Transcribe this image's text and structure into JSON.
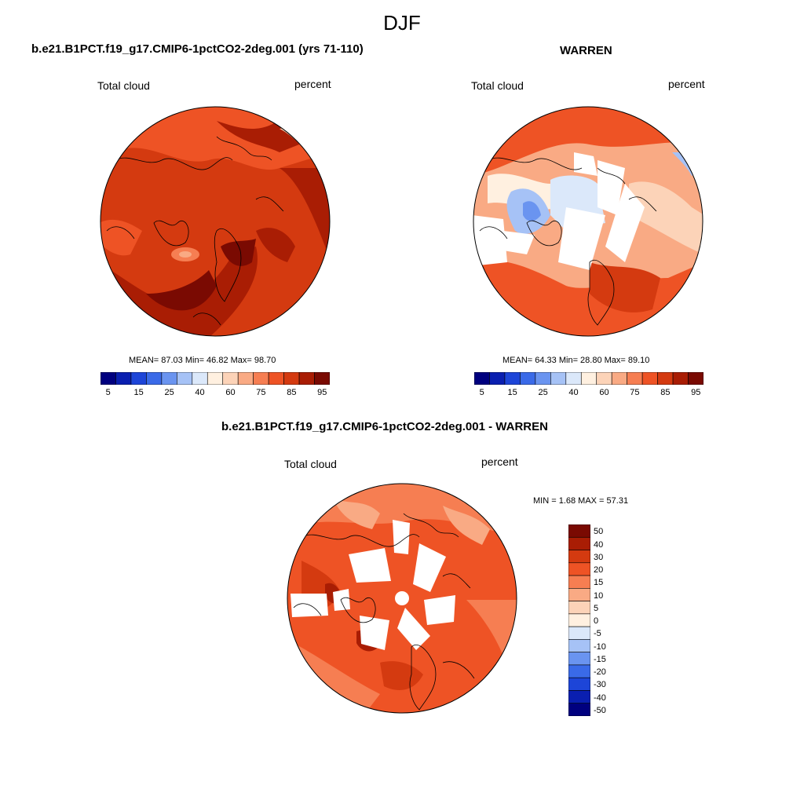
{
  "figure": {
    "season": "DJF"
  },
  "panels": {
    "top_left": {
      "title": "b.e21.B1PCT.f19_g17.CMIP6-1pctCO2-2deg.001 (yrs 71-110)",
      "left_label": "Total cloud",
      "right_label": "percent",
      "stats": "MEAN=  87.03  Min=  46.82  Max=  98.70"
    },
    "top_right": {
      "title": "WARREN",
      "left_label": "Total cloud",
      "right_label": "percent",
      "stats": "MEAN=  64.33  Min=  28.80  Max=  89.10"
    },
    "bottom": {
      "title": "b.e21.B1PCT.f19_g17.CMIP6-1pctCO2-2deg.001 - WARREN",
      "left_label": "Total cloud",
      "right_label": "percent",
      "stats": "MIN =   1.68 MAX =  57.31"
    }
  },
  "colorbars": {
    "absolute": {
      "colors": [
        "#00007f",
        "#0a1fb0",
        "#1d45d8",
        "#3a6ae8",
        "#6a94f0",
        "#a6c2f6",
        "#dbe8fa",
        "#fff0e0",
        "#fcd3b8",
        "#f9aa84",
        "#f67e52",
        "#ee5325",
        "#d43a10",
        "#a91d04",
        "#7a0a02"
      ],
      "tick_labels": [
        "5",
        "15",
        "25",
        "40",
        "60",
        "75",
        "85",
        "95"
      ]
    },
    "difference": {
      "colors": [
        "#7a0a02",
        "#a91d04",
        "#d43a10",
        "#ee5325",
        "#f67e52",
        "#f9aa84",
        "#fcd3b8",
        "#fff0e0",
        "#dbe8fa",
        "#a6c2f6",
        "#6a94f0",
        "#3a6ae8",
        "#1d45d8",
        "#0a1fb0",
        "#00007f"
      ],
      "tick_labels": [
        "50",
        "40",
        "30",
        "20",
        "15",
        "10",
        "5",
        "0",
        "-5",
        "-10",
        "-15",
        "-20",
        "-30",
        "-40",
        "-50"
      ]
    }
  }
}
